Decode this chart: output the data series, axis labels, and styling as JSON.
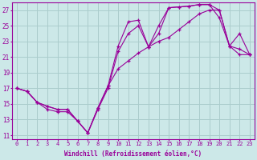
{
  "xlabel": "Windchill (Refroidissement éolien,°C)",
  "background_color": "#cce8e8",
  "grid_color": "#aacccc",
  "line_color": "#990099",
  "xlim_min": -0.5,
  "xlim_max": 23.5,
  "ylim_min": 10.5,
  "ylim_max": 28.0,
  "yticks": [
    11,
    13,
    15,
    17,
    19,
    21,
    23,
    25,
    27
  ],
  "xticks": [
    0,
    1,
    2,
    3,
    4,
    5,
    6,
    7,
    8,
    9,
    10,
    11,
    12,
    13,
    14,
    15,
    16,
    17,
    18,
    19,
    20,
    21,
    22,
    23
  ],
  "line1_x": [
    0,
    1,
    2,
    3,
    4,
    5,
    6,
    7,
    8,
    9,
    10,
    11,
    12,
    13,
    14,
    15,
    16,
    17,
    18,
    19,
    20,
    21,
    22,
    23
  ],
  "line1_y": [
    17.0,
    16.6,
    15.2,
    14.7,
    14.3,
    14.3,
    12.8,
    11.3,
    14.5,
    17.3,
    22.4,
    25.5,
    25.7,
    22.3,
    25.0,
    27.3,
    27.4,
    27.5,
    27.7,
    27.7,
    27.0,
    22.4,
    24.0,
    21.3
  ],
  "line2_x": [
    0,
    1,
    2,
    3,
    4,
    5,
    6,
    7,
    8,
    9,
    10,
    11,
    12,
    13,
    14,
    15,
    16,
    17,
    18,
    19,
    20,
    21,
    22,
    23
  ],
  "line2_y": [
    17.0,
    16.6,
    15.2,
    14.3,
    14.0,
    14.0,
    12.8,
    11.3,
    14.3,
    17.0,
    21.7,
    24.0,
    25.0,
    22.3,
    24.0,
    27.3,
    27.4,
    27.5,
    27.7,
    27.7,
    26.0,
    22.4,
    22.0,
    21.3
  ],
  "line3_x": [
    0,
    1,
    2,
    3,
    4,
    5,
    6,
    7,
    8,
    9,
    10,
    11,
    12,
    13,
    14,
    15,
    16,
    17,
    18,
    19,
    20,
    21,
    22,
    23
  ],
  "line3_y": [
    17.0,
    16.6,
    15.2,
    14.7,
    14.3,
    14.3,
    12.8,
    11.3,
    14.5,
    17.3,
    19.5,
    20.5,
    21.5,
    22.3,
    23.0,
    23.5,
    24.5,
    25.5,
    26.5,
    27.0,
    27.0,
    22.4,
    21.3,
    21.3
  ]
}
